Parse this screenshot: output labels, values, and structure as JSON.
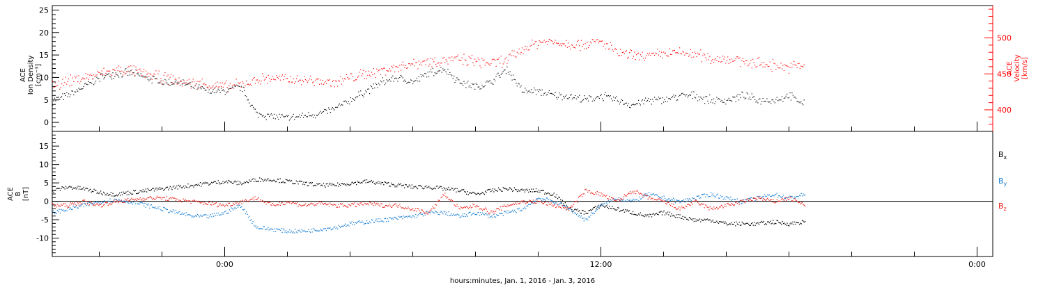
{
  "chart_data": [
    {
      "type": "scatter",
      "panel": "top",
      "ylabel_left": [
        "ACE",
        "Ion Density",
        "[cm⁻³]"
      ],
      "ylabel_right": [
        "ACE",
        "Velocity",
        "[km/s]"
      ],
      "left_axis": {
        "ylim": [
          -2,
          26
        ],
        "ticks": [
          0,
          5,
          10,
          15,
          20,
          25
        ]
      },
      "right_axis": {
        "ylim": [
          370,
          545
        ],
        "ticks": [
          400,
          450,
          500
        ],
        "color": "#ff0000"
      },
      "x_range_hours": [
        -5.5,
        24.5
      ],
      "data_end_hour": 18.5,
      "series": [
        {
          "axis": "left",
          "color": "#000000",
          "x": [
            -5.5,
            -5,
            -4.5,
            -4,
            -3.5,
            -3,
            -2.5,
            -2,
            -1.5,
            -1,
            -0.5,
            0,
            0.5,
            1,
            1.5,
            2,
            2.5,
            3,
            3.5,
            4,
            4.5,
            5,
            5.5,
            6,
            6.5,
            7,
            7.5,
            8,
            8.5,
            9,
            9.5,
            10,
            10.5,
            11,
            11.5,
            12,
            12.5,
            13,
            13.5,
            14,
            14.5,
            15,
            15.5,
            16,
            16.5,
            17,
            17.5,
            18,
            18.5
          ],
          "y": [
            5,
            6,
            8,
            10,
            11,
            11,
            10,
            9,
            9,
            8,
            7,
            7,
            8,
            2,
            1.5,
            1,
            1.5,
            2,
            3,
            5,
            7,
            9,
            10,
            9,
            11,
            12,
            9,
            8,
            9,
            12,
            7,
            7,
            6,
            6,
            5,
            6,
            5,
            4,
            5,
            5,
            6,
            6,
            5,
            5,
            6,
            5,
            5,
            6,
            4
          ]
        },
        {
          "axis": "right",
          "color": "#ff0000",
          "x": [
            -5.5,
            -5,
            -4.5,
            -4,
            -3.5,
            -3,
            -2.5,
            -2,
            -1.5,
            -1,
            -0.5,
            0,
            0.5,
            1,
            1.5,
            2,
            2.5,
            3,
            3.5,
            4,
            4.5,
            5,
            5.5,
            6,
            6.5,
            7,
            7.5,
            8,
            8.5,
            9,
            9.5,
            10,
            10.5,
            11,
            11.5,
            12,
            12.5,
            13,
            13.5,
            14,
            14.5,
            15,
            15.5,
            16,
            16.5,
            17,
            17.5,
            18,
            18.5
          ],
          "y": [
            435,
            440,
            445,
            450,
            455,
            455,
            450,
            445,
            440,
            438,
            435,
            432,
            435,
            442,
            445,
            442,
            442,
            440,
            438,
            445,
            450,
            455,
            460,
            465,
            468,
            470,
            470,
            468,
            465,
            470,
            485,
            495,
            495,
            492,
            492,
            495,
            480,
            475,
            475,
            478,
            480,
            478,
            472,
            472,
            468,
            465,
            462,
            460,
            462
          ]
        }
      ]
    },
    {
      "type": "line",
      "panel": "bottom",
      "ylabel_left": [
        "ACE",
        "B",
        "[nT]"
      ],
      "ylim": [
        -15,
        19
      ],
      "ticks": [
        -10,
        -5,
        0,
        5,
        10,
        15
      ],
      "x_range_hours": [
        -5.5,
        24.5
      ],
      "x_ticks": [
        {
          "hour": 0,
          "label": "0:00"
        },
        {
          "hour": 12,
          "label": "12:00"
        },
        {
          "hour": 24,
          "label": "0:00"
        }
      ],
      "xlabel": "hours:minutes, Jan.  1, 2016 - Jan.  3, 2016",
      "legend": [
        {
          "name": "B",
          "sub": "x",
          "color": "#000000"
        },
        {
          "name": "B",
          "sub": "y",
          "color": "#1a7fd4"
        },
        {
          "name": "B",
          "sub": "z",
          "color": "#e8201a"
        }
      ],
      "series": [
        {
          "name": "Bx",
          "color": "#000000",
          "x": [
            -5.5,
            -5,
            -4.5,
            -4,
            -3.5,
            -3,
            -2.5,
            -2,
            -1.5,
            -1,
            -0.5,
            0,
            0.5,
            1,
            1.5,
            2,
            2.5,
            3,
            3.5,
            4,
            4.5,
            5,
            5.5,
            6,
            6.5,
            7,
            7.5,
            8,
            8.5,
            9,
            9.5,
            10,
            10.5,
            11,
            11.5,
            12,
            12.5,
            13,
            13.5,
            14,
            14.5,
            15,
            15.5,
            16,
            16.5,
            17,
            17.5,
            18,
            18.5
          ],
          "y": [
            3,
            4,
            3.5,
            2.5,
            2,
            2.5,
            3,
            3.5,
            4,
            4.5,
            5,
            5.5,
            5,
            6,
            6,
            5.5,
            5,
            4.5,
            4.5,
            5,
            5.5,
            5,
            4.5,
            4,
            4,
            3.5,
            3,
            2,
            3,
            3.5,
            3,
            3,
            2,
            -2,
            -3,
            -1,
            -2,
            -3,
            -4,
            -3,
            -4,
            -5,
            -5,
            -6,
            -6,
            -6,
            -5.5,
            -6,
            -5.5
          ]
        },
        {
          "name": "By",
          "color": "#1a7fd4",
          "x": [
            -5.5,
            -5,
            -4.5,
            -4,
            -3.5,
            -3,
            -2.5,
            -2,
            -1.5,
            -1,
            -0.5,
            0,
            0.5,
            1,
            1.5,
            2,
            2.5,
            3,
            3.5,
            4,
            4.5,
            5,
            5.5,
            6,
            6.5,
            7,
            7.5,
            8,
            8.5,
            9,
            9.5,
            10,
            10.5,
            11,
            11.5,
            12,
            12.5,
            13,
            13.5,
            14,
            14.5,
            15,
            15.5,
            16,
            16.5,
            17,
            17.5,
            18,
            18.5
          ],
          "y": [
            -3,
            -2,
            -1,
            0,
            0.5,
            0,
            -1,
            -2,
            -3,
            -4,
            -4,
            -3,
            -1,
            -7,
            -7.5,
            -8,
            -8,
            -7.5,
            -7,
            -6,
            -5.5,
            -5,
            -4.5,
            -4,
            -3,
            -3,
            -4,
            -3,
            -4,
            -3,
            -2,
            1,
            0,
            -2,
            -5,
            -1,
            1,
            0,
            2,
            1,
            0,
            1,
            2,
            1,
            0,
            1,
            2,
            1,
            2
          ]
        },
        {
          "name": "Bz",
          "color": "#e8201a",
          "x": [
            -5.5,
            -5,
            -4.5,
            -4,
            -3.5,
            -3,
            -2.5,
            -2,
            -1.5,
            -1,
            -0.5,
            0,
            0.5,
            1,
            1.5,
            2,
            2.5,
            3,
            3.5,
            4,
            4.5,
            5,
            5.5,
            6,
            6.5,
            7,
            7.5,
            8,
            8.5,
            9,
            9.5,
            10,
            10.5,
            11,
            11.5,
            12,
            12.5,
            13,
            13.5,
            14,
            14.5,
            15,
            15.5,
            16,
            16.5,
            17,
            17.5,
            18,
            18.5
          ],
          "y": [
            -1,
            -1,
            0,
            -1,
            0,
            0.5,
            1,
            1,
            0.5,
            0,
            -0.5,
            -1,
            0,
            1,
            -1,
            0,
            -1,
            -0.5,
            -1,
            -1,
            -0.5,
            -1,
            -1,
            -2,
            -3,
            2,
            -2,
            -1,
            -3,
            -1,
            0,
            0,
            -1,
            -2,
            3,
            2,
            0,
            3,
            1,
            0,
            -2,
            0,
            -2,
            -1,
            0,
            1,
            0,
            1,
            -1
          ]
        }
      ]
    }
  ]
}
